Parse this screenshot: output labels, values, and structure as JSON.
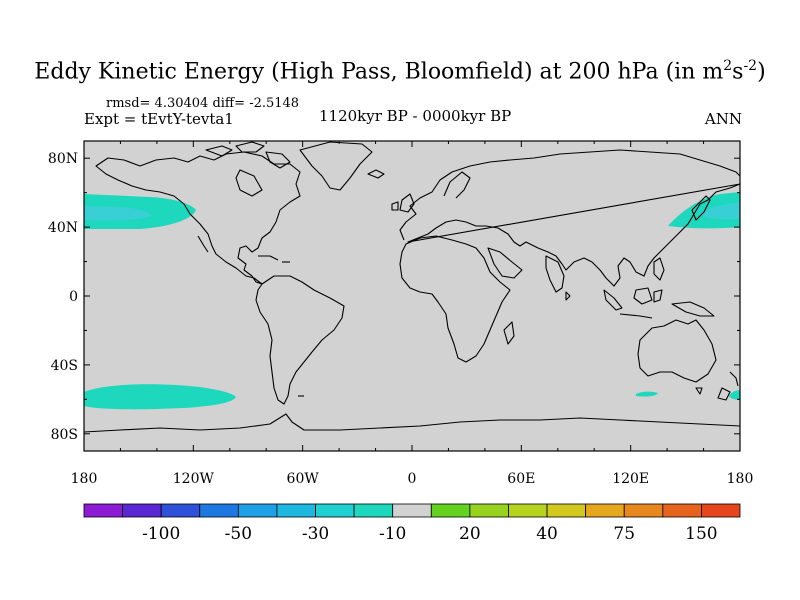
{
  "title": {
    "main": "Eddy Kinetic Energy (High Pass, Bloomfield) at 200 hPa (in m",
    "sup1": "2",
    "mid": "s",
    "sup2": "-2",
    "end": ")"
  },
  "stats": {
    "text": "rmsd= 4.30404  diff= -2.5148"
  },
  "experiment": {
    "text": "Expt = tEvtY-tevta1"
  },
  "period": {
    "text": "1120kyr BP - 0000kyr BP"
  },
  "season": {
    "text": "ANN"
  },
  "map": {
    "projection": "cylindrical equidistant",
    "background_color": "#d2d2d2",
    "lat_ticks": [
      "80N",
      "40N",
      "0",
      "40S",
      "80S"
    ],
    "lon_ticks": [
      "180",
      "120W",
      "60W",
      "0",
      "60E",
      "120E",
      "180"
    ],
    "anomaly_color": "#1ed8be",
    "anomaly_inner_color": "#38d0d4",
    "anomaly_regions": [
      "North Pacific east of Japan",
      "Northeast Pacific off North America",
      "South Pacific near 50S",
      "South Indian Ocean near 45S",
      "South of New Zealand"
    ]
  },
  "colorbar": {
    "labels": [
      "-100",
      "-50",
      "-30",
      "-10",
      "20",
      "40",
      "75",
      "150"
    ],
    "colors": [
      "#8c1cd4",
      "#5a28d2",
      "#2f50d8",
      "#1e78e2",
      "#1ea0e6",
      "#1eb8e0",
      "#1ed0d2",
      "#1ed8be",
      "#d2d2d2",
      "#64d21e",
      "#96d21e",
      "#b4d21e",
      "#d2c81e",
      "#e6a81e",
      "#e6881e",
      "#e6641e",
      "#e6461e"
    ]
  }
}
